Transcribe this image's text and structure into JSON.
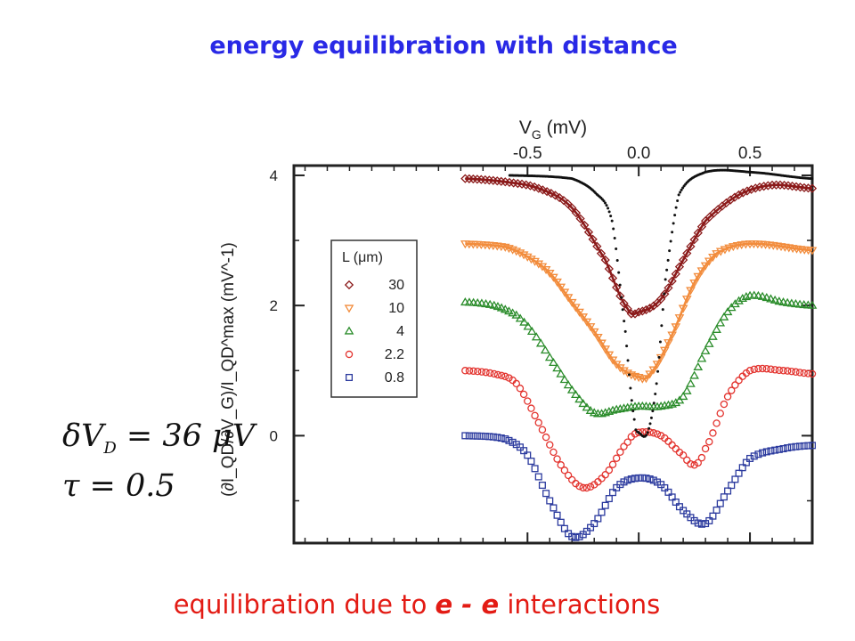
{
  "title": "energy equilibration with distance",
  "formula": {
    "line1": "δV_D = 36 μV",
    "line2": "τ = 0.5"
  },
  "caption": {
    "prefix": "equilibration due to",
    "emphasis": "e - e",
    "suffix": "interactions"
  },
  "colors": {
    "title": "#2929e6",
    "caption": "#e31b14",
    "L30": "#8b1a1a",
    "L10": "#f28c3c",
    "L4": "#2a8c2a",
    "L2_2": "#e3342f",
    "L0_8": "#2b3a9e",
    "dotted": "#111111"
  },
  "chart_data": {
    "type": "scatter",
    "xlabel": "V_G (mV)",
    "ylabel": "(∂I_QD/∂V_G)/I_QD^max (mV^-1)",
    "xlim": [
      -1.55,
      0.78
    ],
    "ylim": [
      -1.65,
      4.15
    ],
    "x_ticks": [
      "-0.5",
      "0.0",
      "0.5"
    ],
    "x_tick_values": [
      -0.5,
      0.0,
      0.5
    ],
    "y_ticks": [
      "0",
      "2",
      "4"
    ],
    "y_tick_values": [
      0,
      2,
      4
    ],
    "legend": {
      "title": "L (μm)",
      "position": "left",
      "entries": [
        "30",
        "10",
        "4",
        "2.2",
        "0.8"
      ]
    },
    "series": [
      {
        "name": "30",
        "marker": "diamond",
        "points": [
          [
            -0.78,
            3.95
          ],
          [
            -0.6,
            3.9
          ],
          [
            -0.45,
            3.8
          ],
          [
            -0.3,
            3.5
          ],
          [
            -0.15,
            2.7
          ],
          [
            -0.05,
            1.95
          ],
          [
            0.0,
            1.9
          ],
          [
            0.1,
            2.1
          ],
          [
            0.2,
            2.7
          ],
          [
            0.3,
            3.3
          ],
          [
            0.45,
            3.7
          ],
          [
            0.6,
            3.85
          ],
          [
            0.78,
            3.8
          ]
        ],
        "fit": true
      },
      {
        "name": "10",
        "marker": "triangle-down",
        "points": [
          [
            -0.78,
            2.95
          ],
          [
            -0.6,
            2.9
          ],
          [
            -0.5,
            2.75
          ],
          [
            -0.4,
            2.5
          ],
          [
            -0.3,
            2.05
          ],
          [
            -0.2,
            1.6
          ],
          [
            -0.1,
            1.1
          ],
          [
            0.0,
            0.9
          ],
          [
            0.05,
            0.95
          ],
          [
            0.15,
            1.55
          ],
          [
            0.25,
            2.35
          ],
          [
            0.35,
            2.8
          ],
          [
            0.5,
            2.95
          ],
          [
            0.78,
            2.85
          ]
        ],
        "fit": true
      },
      {
        "name": "4",
        "marker": "triangle-up",
        "points": [
          [
            -0.78,
            2.05
          ],
          [
            -0.65,
            2.0
          ],
          [
            -0.55,
            1.85
          ],
          [
            -0.48,
            1.6
          ],
          [
            -0.4,
            1.2
          ],
          [
            -0.3,
            0.7
          ],
          [
            -0.2,
            0.35
          ],
          [
            -0.1,
            0.4
          ],
          [
            0.0,
            0.45
          ],
          [
            0.1,
            0.45
          ],
          [
            0.2,
            0.6
          ],
          [
            0.3,
            1.3
          ],
          [
            0.4,
            1.9
          ],
          [
            0.5,
            2.15
          ],
          [
            0.65,
            2.05
          ],
          [
            0.78,
            2.0
          ]
        ],
        "fit": false
      },
      {
        "name": "2.2",
        "marker": "circle",
        "points": [
          [
            -0.78,
            1.0
          ],
          [
            -0.65,
            0.95
          ],
          [
            -0.55,
            0.8
          ],
          [
            -0.45,
            0.2
          ],
          [
            -0.35,
            -0.45
          ],
          [
            -0.25,
            -0.8
          ],
          [
            -0.15,
            -0.6
          ],
          [
            -0.05,
            -0.1
          ],
          [
            0.0,
            0.05
          ],
          [
            0.1,
            0.0
          ],
          [
            0.2,
            -0.3
          ],
          [
            0.25,
            -0.45
          ],
          [
            0.3,
            -0.2
          ],
          [
            0.4,
            0.6
          ],
          [
            0.5,
            1.0
          ],
          [
            0.65,
            1.0
          ],
          [
            0.78,
            0.95
          ]
        ],
        "fit": false
      },
      {
        "name": "0.8",
        "marker": "square",
        "points": [
          [
            -0.78,
            0.0
          ],
          [
            -0.6,
            -0.05
          ],
          [
            -0.5,
            -0.3
          ],
          [
            -0.4,
            -1.0
          ],
          [
            -0.3,
            -1.55
          ],
          [
            -0.2,
            -1.35
          ],
          [
            -0.1,
            -0.8
          ],
          [
            0.0,
            -0.65
          ],
          [
            0.1,
            -0.75
          ],
          [
            0.2,
            -1.15
          ],
          [
            0.3,
            -1.35
          ],
          [
            0.4,
            -0.85
          ],
          [
            0.5,
            -0.35
          ],
          [
            0.65,
            -0.2
          ],
          [
            0.78,
            -0.15
          ]
        ],
        "fit": false
      },
      {
        "name": "",
        "marker": "dot",
        "points": [
          [
            -0.58,
            4.0
          ],
          [
            -0.3,
            3.95
          ],
          [
            -0.2,
            3.75
          ],
          [
            -0.12,
            3.3
          ],
          [
            -0.06,
            1.6
          ],
          [
            -0.02,
            0.25
          ],
          [
            0.0,
            0.05
          ],
          [
            0.04,
            0.05
          ],
          [
            0.08,
            0.8
          ],
          [
            0.12,
            2.4
          ],
          [
            0.18,
            3.7
          ],
          [
            0.3,
            4.05
          ],
          [
            0.5,
            4.05
          ],
          [
            0.78,
            3.95
          ]
        ],
        "fit": false
      }
    ]
  }
}
